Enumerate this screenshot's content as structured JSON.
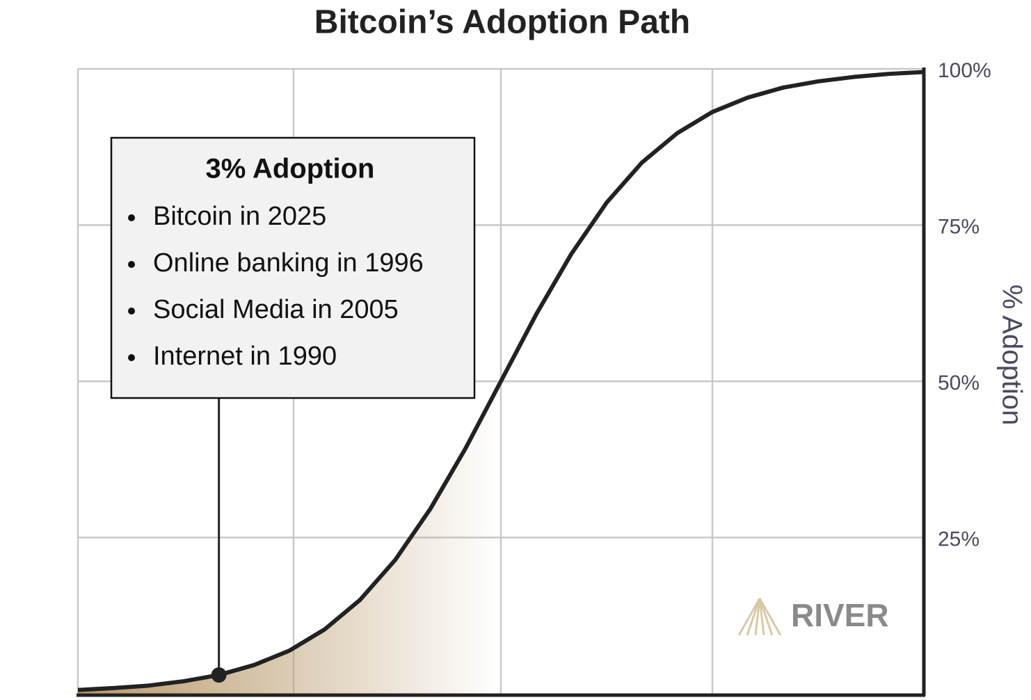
{
  "chart_data": {
    "type": "line",
    "title": "Bitcoin’s Adoption Path",
    "y_label": "% Adoption",
    "categories": [
      null,
      null,
      null,
      null,
      null,
      null,
      null,
      null,
      null,
      null,
      null,
      null,
      null,
      null,
      null,
      null,
      null,
      null,
      null,
      null,
      null,
      null,
      null,
      null,
      null
    ],
    "series": [
      {
        "color": "#222222",
        "values": [
          0.6,
          0.9,
          1.3,
          2.0,
          3.0,
          4.6,
          6.9,
          10.3,
          15.0,
          21.4,
          29.6,
          39.3,
          50.0,
          60.7,
          70.4,
          78.6,
          85.0,
          89.7,
          93.1,
          95.4,
          97.0,
          98.0,
          98.7,
          99.2,
          99.5
        ]
      }
    ],
    "fill_color": "#b8996a",
    "ylim": [
      0,
      100
    ],
    "yticks": [
      {
        "value": 25,
        "label": "25%"
      },
      {
        "value": 50,
        "label": "50%"
      },
      {
        "value": 75,
        "label": "75%"
      },
      {
        "value": 100,
        "label": "100%"
      }
    ],
    "grid": true,
    "annotation": {
      "title": "3% Adoption",
      "items": [
        "Bitcoin in 2025",
        "Online banking in 1996",
        "Social Media in 2005",
        "Internet in 1990"
      ]
    },
    "watermark": "RIVER"
  }
}
